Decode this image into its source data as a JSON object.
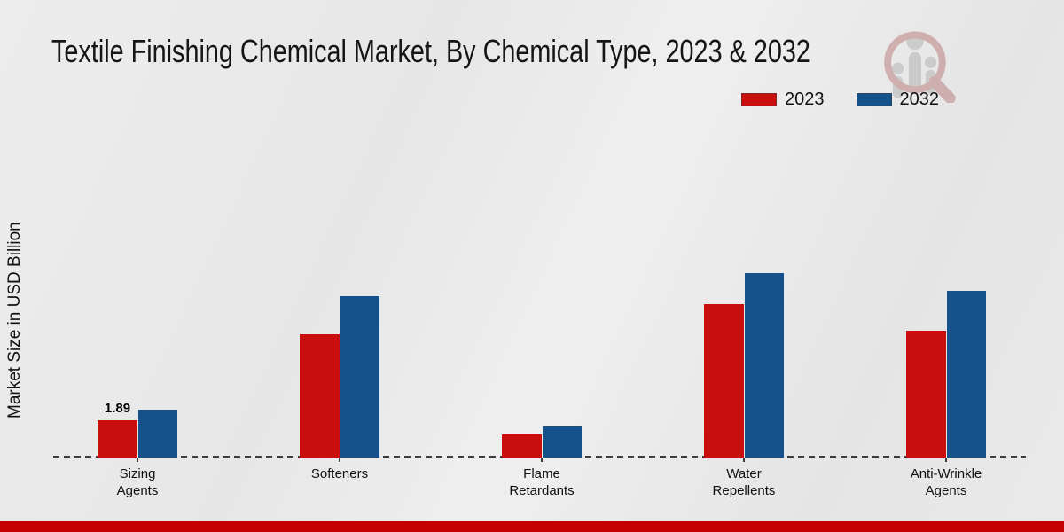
{
  "header": {
    "title": "Textile Finishing Chemical Market, By Chemical Type, 2023 & 2032"
  },
  "y_axis": {
    "label": "Market Size in USD Billion"
  },
  "legend": {
    "items": [
      {
        "label": "2023",
        "color": "#c90e0e"
      },
      {
        "label": "2032",
        "color": "#15518b"
      }
    ]
  },
  "watermark": {
    "icon": "magnifier-bar-chart-logo"
  },
  "accent": {
    "footer_color": "#c40000"
  },
  "chart_data": {
    "type": "bar",
    "title": "Textile Finishing Chemical Market, By Chemical Type, 2023 & 2032",
    "ylabel": "Market Size in USD Billion",
    "categories": [
      "Sizing\nAgents",
      "Softeners",
      "Flame\nRetardants",
      "Water\nRepellents",
      "Anti-Wrinkle\nAgents"
    ],
    "series": [
      {
        "name": "2023",
        "color": "#c90e0e",
        "values": [
          1.89,
          6.25,
          1.17,
          7.79,
          6.44
        ],
        "bar_labels": [
          "1.89",
          "",
          "",
          "",
          ""
        ]
      },
      {
        "name": "2032",
        "color": "#15518b",
        "values": [
          2.43,
          8.19,
          1.58,
          9.36,
          8.46
        ],
        "bar_labels": [
          "",
          "",
          "",
          "",
          ""
        ]
      }
    ],
    "ylim": [
      0,
      10
    ],
    "grid": false,
    "legend_position": "upper right",
    "x_axis_style": "dashed-baseline-no-ticks-values"
  }
}
